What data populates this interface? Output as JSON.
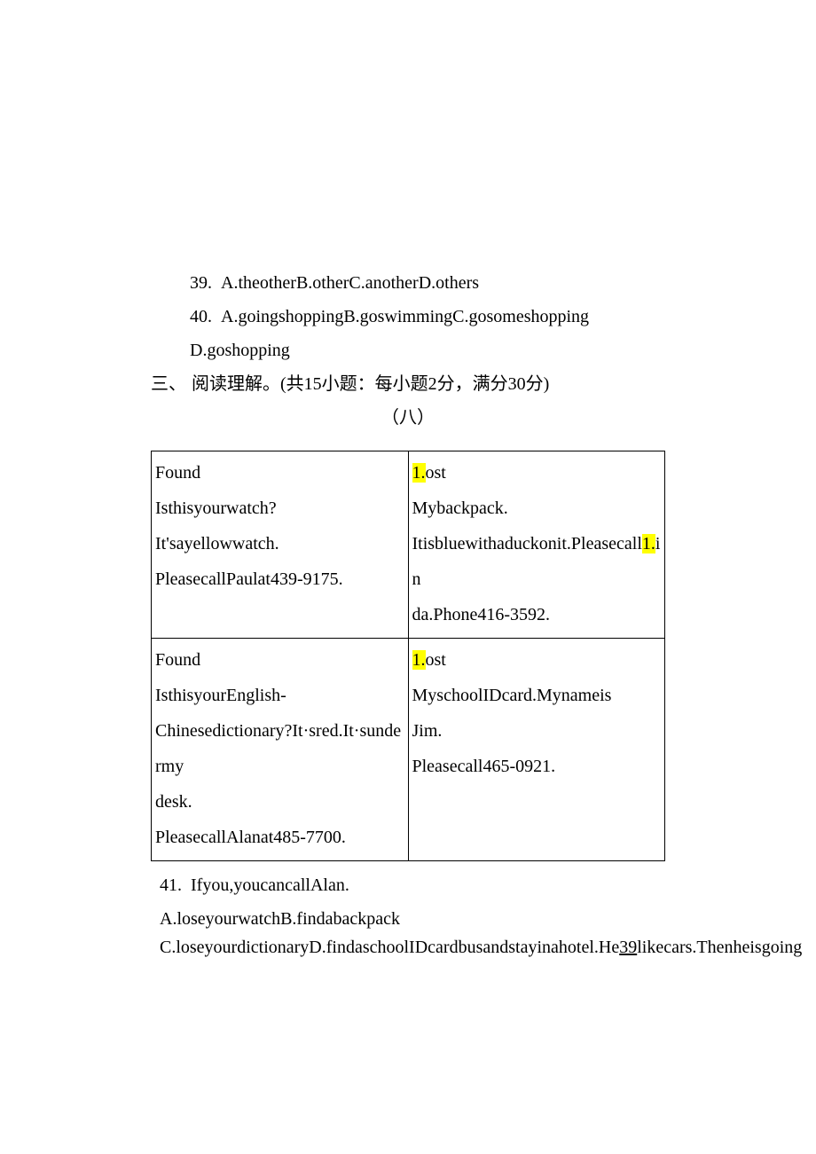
{
  "q39": {
    "num": "39.",
    "opts": "A.theotherB.otherC.anotherD.others"
  },
  "q40": {
    "num": "40.",
    "line1": "A.goingshoppingB.goswimmingC.gosomeshopping",
    "line2": "D.goshopping"
  },
  "section": {
    "num": "三、",
    "title": "阅读理解。(共15小题：每小题2分，满分30分)",
    "sub": "（八）"
  },
  "table": {
    "r1c1": {
      "l1": "Found",
      "l2": "Isthisyourwatch?",
      "l3": "It'sayellowwatch.",
      "l4": "PleasecallPaulat439-9175."
    },
    "r1c2": {
      "hl": "1.",
      "l1b": "ost",
      "l2": "Mybackpack.",
      "l3a": "Itisbluewithaduckonit.Pleasecall",
      "l3hl": "1.",
      "l3b": "in",
      "l4": "da.Phone416-3592."
    },
    "r2c1": {
      "l1": "Found",
      "l2": "IsthisyourEnglish-",
      "l3": "Chinesedictionary?It·sred.It·sundermy",
      "l4": "desk.",
      "l5": "PleasecallAlanat485-7700."
    },
    "r2c2": {
      "hl": "1.",
      "l1b": "ost",
      "l2": "MyschoolIDcard.Mynameis",
      "l3": "Jim.",
      "l4": "Pleasecall465-0921."
    }
  },
  "q41": {
    "num": "41.",
    "stem": "Ifyou,youcancallAlan.",
    "ab": "A.loseyourwatchB.findabackpack",
    "cd_a": "C.loseyourdictionaryD.findaschoolIDcardbusandstayinahotel.He",
    "cd_u": "39",
    "cd_b": "likecars.Thenheisgoing"
  }
}
